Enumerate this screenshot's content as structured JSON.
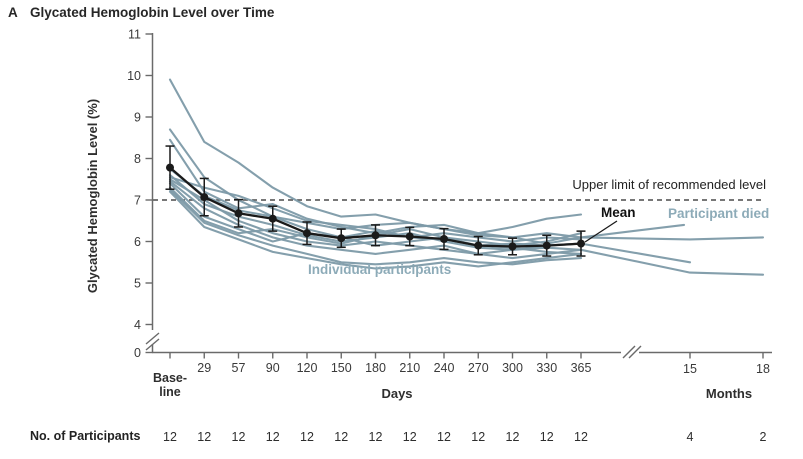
{
  "figure": {
    "panel_label": "A",
    "title": "Glycated Hemoglobin Level over Time"
  },
  "y_axis": {
    "label": "Glycated Hemoglobin Level (%)",
    "tick_values": [
      0,
      4,
      5,
      6,
      7,
      8,
      9,
      10,
      11
    ],
    "broken": true
  },
  "x_axis": {
    "baseline_label_line1": "Base-",
    "baseline_label_line2": "line",
    "day_tick_labels": [
      "29",
      "57",
      "90",
      "120",
      "150",
      "180",
      "210",
      "240",
      "270",
      "300",
      "330",
      "365"
    ],
    "days_label": "Days",
    "month_tick_labels": [
      "15",
      "18"
    ],
    "months_label": "Months",
    "broken": true
  },
  "annotations": {
    "upper_limit": "Upper limit of recommended level",
    "mean": "Mean",
    "participant_died": "Participant died",
    "individual_participants": "Individual participants"
  },
  "participants": {
    "label": "No. of Participants",
    "day_counts": [
      12,
      12,
      12,
      12,
      12,
      12,
      12,
      12,
      12,
      12,
      12,
      12,
      12
    ],
    "month_counts": [
      4,
      2
    ]
  },
  "colors": {
    "individual_line": "#7d9aa8",
    "blue_label": "#8dabb8",
    "mean_line": "#1a1a1a",
    "dashed_line": "#4a4a4a",
    "axis": "#6a6a6a",
    "tick_text": "#3a3a3a",
    "count_text": "#2e2e2e"
  },
  "chart_data": {
    "type": "line",
    "title": "Glycated Hemoglobin Level over Time",
    "ylabel": "Glycated Hemoglobin Level (%)",
    "xlabel": "Days (Baseline to 365), then Months (15, 18)",
    "ylim_main": [
      4,
      11
    ],
    "x_days": [
      "Baseline",
      29,
      57,
      90,
      120,
      150,
      180,
      210,
      240,
      270,
      300,
      330,
      365
    ],
    "x_months": [
      15,
      18
    ],
    "reference_line": {
      "value": 7.0,
      "style": "dashed",
      "label": "Upper limit of recommended level"
    },
    "mean_series": {
      "name": "Mean",
      "values": [
        7.78,
        7.07,
        6.68,
        6.55,
        6.2,
        6.08,
        6.15,
        6.12,
        6.06,
        5.9,
        5.88,
        5.9,
        5.95
      ],
      "error": [
        0.52,
        0.45,
        0.33,
        0.3,
        0.27,
        0.22,
        0.25,
        0.22,
        0.25,
        0.22,
        0.2,
        0.25,
        0.3
      ]
    },
    "individual_series": [
      {
        "id": 1,
        "died": false,
        "values": [
          9.9,
          8.4,
          7.9,
          7.3,
          6.85,
          6.6,
          6.65,
          6.45,
          6.3,
          6.2,
          6.35,
          6.55,
          6.65,
          null,
          null
        ]
      },
      {
        "id": 2,
        "died": false,
        "values": [
          8.7,
          7.55,
          7.0,
          6.6,
          6.45,
          6.3,
          6.4,
          6.45,
          6.3,
          6.15,
          6.1,
          6.2,
          6.1,
          6.05,
          6.1
        ]
      },
      {
        "id": 3,
        "died": true,
        "values": [
          8.45,
          7.2,
          6.8,
          6.9,
          6.55,
          6.35,
          6.2,
          6.35,
          6.4,
          6.2,
          6.1,
          5.95,
          6.1,
          6.4,
          null
        ]
      },
      {
        "id": 4,
        "died": false,
        "values": [
          7.75,
          7.1,
          6.75,
          6.6,
          6.3,
          6.1,
          6.25,
          6.1,
          6.05,
          5.9,
          5.95,
          5.9,
          5.95,
          5.5,
          null
        ]
      },
      {
        "id": 5,
        "died": false,
        "values": [
          7.6,
          6.9,
          6.6,
          6.4,
          6.15,
          6.0,
          6.1,
          6.2,
          6.0,
          5.85,
          5.8,
          5.85,
          5.8,
          5.25,
          5.2
        ]
      },
      {
        "id": 6,
        "died": false,
        "values": [
          7.55,
          7.3,
          7.1,
          6.8,
          6.5,
          6.4,
          6.3,
          6.1,
          6.2,
          6.1,
          6.0,
          6.1,
          6.05,
          null,
          null
        ]
      },
      {
        "id": 7,
        "died": false,
        "values": [
          7.5,
          7.0,
          6.5,
          6.2,
          6.0,
          5.9,
          6.0,
          5.9,
          5.8,
          5.7,
          5.8,
          5.9,
          5.95,
          null,
          null
        ]
      },
      {
        "id": 8,
        "died": false,
        "values": [
          7.45,
          6.8,
          6.4,
          6.1,
          5.9,
          5.8,
          5.7,
          5.8,
          5.9,
          5.7,
          5.6,
          5.7,
          5.8,
          null,
          null
        ]
      },
      {
        "id": 9,
        "died": false,
        "values": [
          7.4,
          6.6,
          6.3,
          6.0,
          6.2,
          6.1,
          5.9,
          6.0,
          6.1,
          5.9,
          5.85,
          5.75,
          5.7,
          null,
          null
        ]
      },
      {
        "id": 10,
        "died": false,
        "values": [
          7.3,
          6.5,
          6.2,
          6.3,
          6.1,
          5.95,
          6.15,
          6.3,
          6.1,
          6.0,
          5.9,
          6.0,
          6.2,
          null,
          null
        ]
      },
      {
        "id": 11,
        "died": false,
        "values": [
          7.25,
          6.45,
          6.15,
          5.9,
          5.7,
          5.5,
          5.45,
          5.5,
          5.6,
          5.5,
          5.45,
          5.55,
          5.6,
          null,
          null
        ]
      },
      {
        "id": 12,
        "died": false,
        "values": [
          7.2,
          6.35,
          6.05,
          5.75,
          5.6,
          5.45,
          5.35,
          5.4,
          5.5,
          5.4,
          5.5,
          5.6,
          5.7,
          null,
          null
        ]
      }
    ]
  }
}
